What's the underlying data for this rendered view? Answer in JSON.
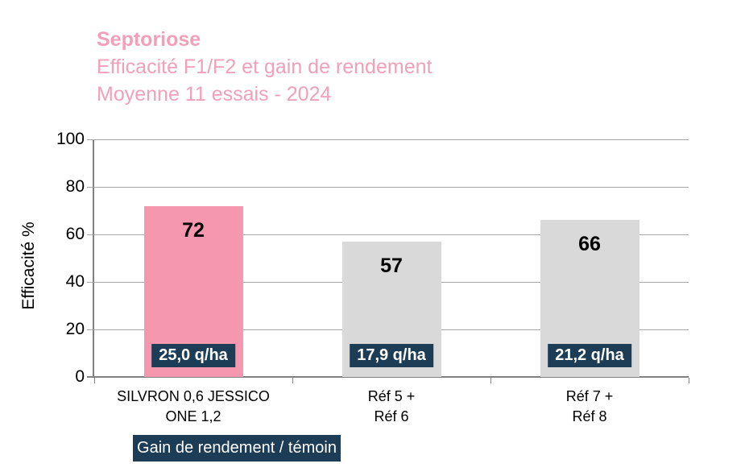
{
  "title": {
    "line1": "Septoriose",
    "line2": "Efficacité F1/F2 et gain de rendement",
    "line3": "Moyenne 11 essais - 2024"
  },
  "chart_data": {
    "type": "bar",
    "title": "Septoriose",
    "subtitle": "Efficacité F1/F2 et gain de rendement — Moyenne 11 essais - 2024",
    "ylabel": "Efficacité %",
    "ylim": [
      0,
      100
    ],
    "yticks": [
      0,
      20,
      40,
      60,
      80,
      100
    ],
    "grid": "horizontal",
    "legend_position": "bottom-left",
    "categories": [
      [
        "SILVRON 0,6 JESSICO",
        "ONE 1,2"
      ],
      [
        "Réf 5 +",
        "Réf 6"
      ],
      [
        "Réf 7 +",
        "Réf 8"
      ]
    ],
    "series": [
      {
        "name": "Efficacité %",
        "values": [
          72,
          57,
          66
        ],
        "bar_labels": [
          "72",
          "57",
          "66"
        ],
        "bar_colors": [
          "#F697B0",
          "#D9D9D9",
          "#D9D9D9"
        ]
      },
      {
        "name": "Gain de rendement / témoin",
        "values_text": [
          "25,0 q/ha",
          "17,9 q/ha",
          "21,2 q/ha"
        ],
        "badge_color": "#1C3D55"
      }
    ],
    "legend_label": "Gain de rendement / témoin"
  },
  "colors": {
    "title_pink": "#F29FB8",
    "bar_pink": "#F697B0",
    "bar_gray": "#D9D9D9",
    "navy": "#1C3D55",
    "gridline": "#A6A6A6",
    "axis": "#808080",
    "text": "#000000",
    "badge_text": "#FFFFFF"
  }
}
